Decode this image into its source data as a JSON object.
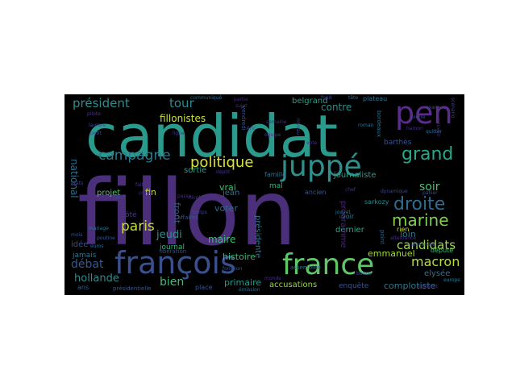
{
  "figure": {
    "background_color": "#000000",
    "page_color": "#ffffff",
    "colormap": "viridis"
  },
  "words": [
    {
      "text": "candidat",
      "color": "#2a9a8c"
    },
    {
      "text": "fillon",
      "color": "#4b2f7a"
    },
    {
      "text": "pen",
      "color": "#5a2d8a"
    },
    {
      "text": "françois",
      "color": "#3b4f8c"
    },
    {
      "text": "france",
      "color": "#5fc767"
    },
    {
      "text": "juppé",
      "color": "#2f8f8c"
    },
    {
      "text": "politique",
      "color": "#d8e23a"
    },
    {
      "text": "campagne",
      "color": "#2b7a8e"
    },
    {
      "text": "président",
      "color": "#2e8e8c"
    },
    {
      "text": "tour",
      "color": "#2d8a8c"
    },
    {
      "text": "grand",
      "color": "#2aa78a"
    },
    {
      "text": "droite",
      "color": "#2f6c8e"
    },
    {
      "text": "marine",
      "color": "#7ecf4e"
    },
    {
      "text": "paris",
      "color": "#c5dd3a"
    },
    {
      "text": "macron",
      "color": "#b8de3c"
    },
    {
      "text": "candidats",
      "color": "#9fd84a"
    },
    {
      "text": "débat",
      "color": "#38598c"
    },
    {
      "text": "hollande",
      "color": "#2f8b8c"
    },
    {
      "text": "bien",
      "color": "#3dbc74"
    },
    {
      "text": "contre",
      "color": "#2f8c8c"
    },
    {
      "text": "soir",
      "color": "#47c16e"
    },
    {
      "text": "livre",
      "color": "#2e7c8e"
    },
    {
      "text": "loin",
      "color": "#2c728e"
    },
    {
      "text": "journaliste",
      "color": "#24a08a"
    },
    {
      "text": "national",
      "color": "#2e6f8e"
    },
    {
      "text": "fillonistes",
      "color": "#c7e03a"
    },
    {
      "text": "belgrand",
      "color": "#1fa287"
    },
    {
      "text": "jeudi",
      "color": "#2f8e8c"
    },
    {
      "text": "maire",
      "color": "#3fbc73"
    },
    {
      "text": "voter",
      "color": "#31688e"
    },
    {
      "text": "vrai",
      "color": "#44bf70"
    },
    {
      "text": "jean",
      "color": "#2c718e"
    },
    {
      "text": "histoire",
      "color": "#3bbb75"
    },
    {
      "text": "primaire",
      "color": "#1f9a8a"
    },
    {
      "text": "accusations",
      "color": "#95d840"
    },
    {
      "text": "complotiste",
      "color": "#2a788e"
    },
    {
      "text": "enquête",
      "color": "#3b528b"
    },
    {
      "text": "emmanuel",
      "color": "#a2da37"
    },
    {
      "text": "dernier",
      "color": "#22a884"
    },
    {
      "text": "elysée",
      "color": "#2c728e"
    },
    {
      "text": "député",
      "color": "#3aba76"
    },
    {
      "text": "rien",
      "color": "#c2df23"
    },
    {
      "text": "sortie",
      "color": "#2a9d8f"
    },
    {
      "text": "front",
      "color": "#38598c"
    },
    {
      "text": "fin",
      "color": "#b4de2c"
    },
    {
      "text": "idée",
      "color": "#3e4c8a"
    },
    {
      "text": "projet",
      "color": "#4ec36b"
    },
    {
      "text": "jamais",
      "color": "#2b758e"
    },
    {
      "text": "côté",
      "color": "#453882"
    },
    {
      "text": "journal",
      "color": "#35b779"
    },
    {
      "text": "faut",
      "color": "#3e4989"
    },
    {
      "text": "mal",
      "color": "#2db27d"
    },
    {
      "text": "ancien",
      "color": "#39568c"
    },
    {
      "text": "programme",
      "color": "#482475"
    },
    {
      "text": "présidente",
      "color": "#2b758e"
    },
    {
      "text": "barthès",
      "color": "#3b528b"
    },
    {
      "text": "voir",
      "color": "#2a788e"
    },
    {
      "text": "famille",
      "color": "#2c728e"
    },
    {
      "text": "libération",
      "color": "#3e4989"
    },
    {
      "text": "assemblée",
      "color": "#2d708e"
    },
    {
      "text": "affaires",
      "color": "#3b528b"
    },
    {
      "text": "ans",
      "color": "#38598c"
    },
    {
      "text": "place",
      "color": "#3a548c"
    },
    {
      "text": "monde",
      "color": "#46327e"
    },
    {
      "text": "émission",
      "color": "#2e6e8e"
    },
    {
      "text": "presse",
      "color": "#481f70"
    },
    {
      "text": "plateau",
      "color": "#2c728e"
    },
    {
      "text": "tête",
      "color": "#31688e"
    },
    {
      "text": "fond",
      "color": "#3f4788"
    },
    {
      "text": "partie",
      "color": "#482576"
    },
    {
      "text": "sujet",
      "color": "#472d7b"
    },
    {
      "text": "communiqué",
      "color": "#2e6e8e"
    },
    {
      "text": "vendredi",
      "color": "#3b528b"
    },
    {
      "text": "roman",
      "color": "#2c728e"
    },
    {
      "text": "bordeaux",
      "color": "#2d708e"
    },
    {
      "text": "sarkozy",
      "color": "#21918c"
    },
    {
      "text": "pierre",
      "color": "#3e4989"
    },
    {
      "text": "examen",
      "color": "#3f4788"
    },
    {
      "text": "nicolas",
      "color": "#46337f"
    },
    {
      "text": "temps",
      "color": "#3e4989"
    },
    {
      "text": "pouvoir",
      "color": "#482878"
    },
    {
      "text": "scénario",
      "color": "#3f4788"
    },
    {
      "text": "ligne",
      "color": "#443983"
    },
    {
      "text": "dépôt",
      "color": "#463480"
    },
    {
      "text": "mariage",
      "color": "#2e6f8e"
    },
    {
      "text": "poutine",
      "color": "#38598c"
    },
    {
      "text": "euros",
      "color": "#2f6c8e"
    },
    {
      "text": "europe",
      "color": "#2a788e"
    },
    {
      "text": "alexandre",
      "color": "#3b528b"
    },
    {
      "text": "jouyet",
      "color": "#2d708e"
    },
    {
      "text": "passe",
      "color": "#472d7b"
    },
    {
      "text": "pallier",
      "color": "#3e4989"
    },
    {
      "text": "chef",
      "color": "#46337f"
    },
    {
      "text": "quitter",
      "color": "#2f6c8e"
    },
    {
      "text": "point",
      "color": "#32658e"
    },
    {
      "text": "états",
      "color": "#443983"
    },
    {
      "text": "mois",
      "color": "#3b528b"
    },
    {
      "text": "laurent",
      "color": "#3f4788"
    },
    {
      "text": "présidentielle",
      "color": "#38598c"
    },
    {
      "text": "équipe",
      "color": "#443983"
    },
    {
      "text": "éric",
      "color": "#3b528b"
    },
    {
      "text": "semaine",
      "color": "#472d7b"
    },
    {
      "text": "niveau",
      "color": "#3e4989"
    },
    {
      "text": "fonction",
      "color": "#39568c"
    },
    {
      "text": "hamon",
      "color": "#472d7b"
    },
    {
      "text": "pilote",
      "color": "#443983"
    },
    {
      "text": "dynamique",
      "color": "#3f4788"
    },
    {
      "text": "alternance",
      "color": "#46337f"
    },
    {
      "text": "bonne",
      "color": "#3b528b"
    },
    {
      "text": "moment",
      "color": "#482878"
    },
    {
      "text": "fait",
      "color": "#443983"
    },
    {
      "text": "petit",
      "color": "#3e4989"
    },
    {
      "text": "vote",
      "color": "#472d7b"
    }
  ]
}
